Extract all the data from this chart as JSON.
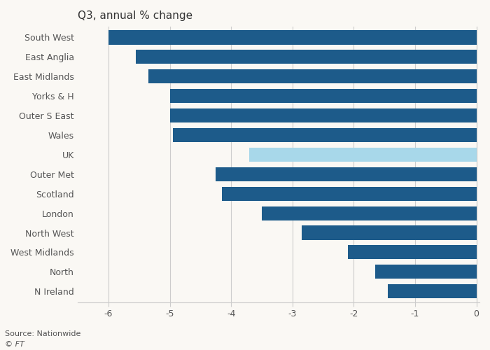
{
  "categories": [
    "South West",
    "East Anglia",
    "East Midlands",
    "Yorks & H",
    "Outer S East",
    "Wales",
    "UK",
    "Outer Met",
    "Scotland",
    "London",
    "North West",
    "West Midlands",
    "North",
    "N Ireland"
  ],
  "values": [
    -6.0,
    -5.55,
    -5.35,
    -5.0,
    -5.0,
    -4.95,
    -3.7,
    -4.25,
    -4.15,
    -3.5,
    -2.85,
    -2.1,
    -1.65,
    -1.45
  ],
  "bar_colors": [
    "#1d5b8a",
    "#1d5b8a",
    "#1d5b8a",
    "#1d5b8a",
    "#1d5b8a",
    "#1d5b8a",
    "#a8d8ea",
    "#1d5b8a",
    "#1d5b8a",
    "#1d5b8a",
    "#1d5b8a",
    "#1d5b8a",
    "#1d5b8a",
    "#1d5b8a"
  ],
  "title": "Q3, annual % change",
  "xlim": [
    -6.5,
    0.05
  ],
  "xticks": [
    -6,
    -5,
    -4,
    -3,
    -2,
    -1,
    0
  ],
  "source_line1": "Source: Nationwide",
  "source_line2": "© FT",
  "bg_color": "#FAF8F4",
  "plot_bg_color": "#FAF8F4",
  "title_fontsize": 11,
  "tick_fontsize": 9,
  "label_fontsize": 9,
  "grid_color": "#cccccc",
  "axis_color": "#cccccc",
  "text_color": "#555555",
  "bar_height": 0.72,
  "figsize": [
    7.0,
    5.0
  ],
  "dpi": 100
}
